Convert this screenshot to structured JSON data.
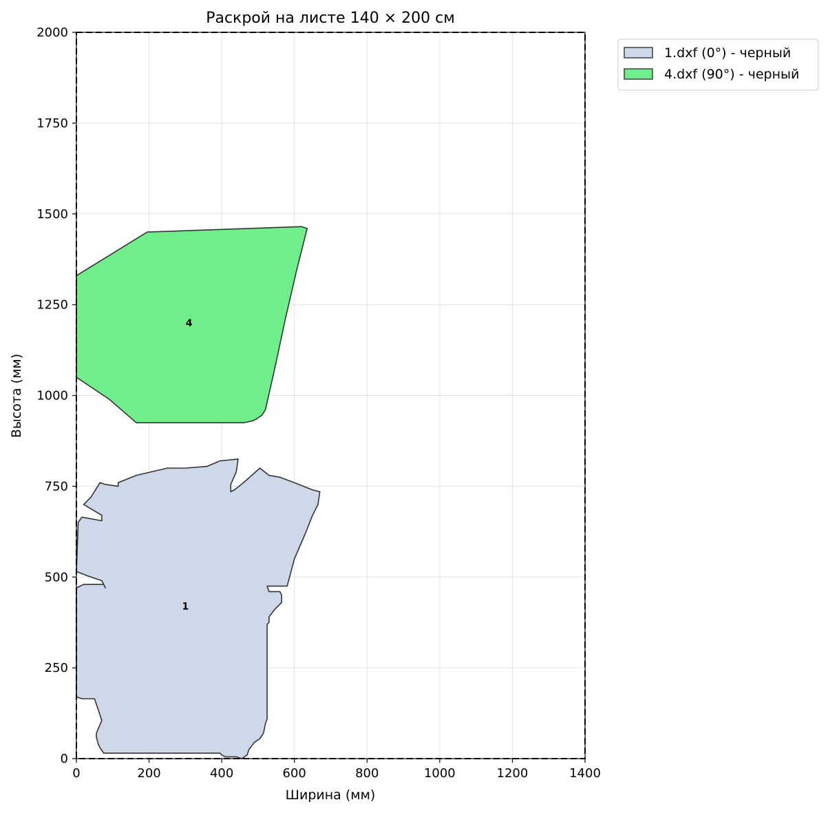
{
  "chart_data": {
    "type": "polygon",
    "title": "Раскрой на листе 140 × 200 см",
    "xlabel": "Ширина (мм)",
    "ylabel": "Высота (мм)",
    "xlim": [
      0,
      1400
    ],
    "ylim": [
      0,
      2000
    ],
    "xticks": [
      0,
      200,
      400,
      600,
      800,
      1000,
      1200,
      1400
    ],
    "yticks": [
      0,
      250,
      500,
      750,
      1000,
      1250,
      1500,
      1750,
      2000
    ],
    "grid": true,
    "legend_position": "outside-top-right",
    "sheet_border": {
      "width": 1400,
      "height": 2000,
      "style": "dashed",
      "color": "#000000"
    },
    "pieces": [
      {
        "label": "1",
        "legend": "1.dxf (0°) - черный",
        "fill": "#cdd8e8",
        "edge": "#333333",
        "label_pos": [
          300,
          420
        ],
        "points": [
          [
            0,
            470
          ],
          [
            20,
            480
          ],
          [
            75,
            480
          ],
          [
            80,
            470
          ],
          [
            70,
            490
          ],
          [
            40,
            500
          ],
          [
            0,
            515
          ],
          [
            5,
            650
          ],
          [
            15,
            665
          ],
          [
            70,
            655
          ],
          [
            70,
            670
          ],
          [
            20,
            700
          ],
          [
            40,
            720
          ],
          [
            65,
            760
          ],
          [
            80,
            755
          ],
          [
            115,
            750
          ],
          [
            115,
            760
          ],
          [
            165,
            780
          ],
          [
            250,
            800
          ],
          [
            300,
            800
          ],
          [
            360,
            805
          ],
          [
            395,
            820
          ],
          [
            445,
            825
          ],
          [
            440,
            790
          ],
          [
            425,
            755
          ],
          [
            425,
            735
          ],
          [
            435,
            740
          ],
          [
            460,
            760
          ],
          [
            505,
            800
          ],
          [
            530,
            780
          ],
          [
            560,
            775
          ],
          [
            600,
            760
          ],
          [
            650,
            740
          ],
          [
            670,
            735
          ],
          [
            665,
            700
          ],
          [
            650,
            670
          ],
          [
            630,
            620
          ],
          [
            600,
            550
          ],
          [
            580,
            475
          ],
          [
            570,
            475
          ],
          [
            530,
            475
          ],
          [
            525,
            475
          ],
          [
            530,
            460
          ],
          [
            560,
            460
          ],
          [
            565,
            450
          ],
          [
            565,
            430
          ],
          [
            545,
            410
          ],
          [
            530,
            390
          ],
          [
            530,
            375
          ],
          [
            525,
            370
          ],
          [
            525,
            290
          ],
          [
            525,
            190
          ],
          [
            525,
            130
          ],
          [
            525,
            110
          ],
          [
            520,
            95
          ],
          [
            515,
            70
          ],
          [
            505,
            55
          ],
          [
            490,
            45
          ],
          [
            475,
            25
          ],
          [
            470,
            10
          ],
          [
            455,
            0
          ],
          [
            440,
            5
          ],
          [
            430,
            5
          ],
          [
            410,
            5
          ],
          [
            400,
            10
          ],
          [
            395,
            15
          ],
          [
            310,
            15
          ],
          [
            175,
            15
          ],
          [
            165,
            15
          ],
          [
            90,
            15
          ],
          [
            75,
            15
          ],
          [
            65,
            30
          ],
          [
            60,
            40
          ],
          [
            55,
            60
          ],
          [
            55,
            70
          ],
          [
            70,
            105
          ],
          [
            65,
            120
          ],
          [
            55,
            150
          ],
          [
            50,
            165
          ],
          [
            15,
            165
          ],
          [
            0,
            170
          ]
        ]
      },
      {
        "label": "4",
        "legend": "4.dxf (90°) - черный",
        "fill": "#70ee8b",
        "edge": "#333333",
        "label_pos": [
          310,
          1200
        ],
        "points": [
          [
            0,
            1330
          ],
          [
            195,
            1450
          ],
          [
            620,
            1465
          ],
          [
            635,
            1460
          ],
          [
            630,
            1440
          ],
          [
            605,
            1340
          ],
          [
            575,
            1210
          ],
          [
            545,
            1070
          ],
          [
            520,
            960
          ],
          [
            510,
            945
          ],
          [
            495,
            935
          ],
          [
            485,
            930
          ],
          [
            460,
            925
          ],
          [
            445,
            925
          ],
          [
            320,
            925
          ],
          [
            255,
            925
          ],
          [
            165,
            925
          ],
          [
            90,
            990
          ],
          [
            0,
            1050
          ]
        ]
      }
    ]
  }
}
